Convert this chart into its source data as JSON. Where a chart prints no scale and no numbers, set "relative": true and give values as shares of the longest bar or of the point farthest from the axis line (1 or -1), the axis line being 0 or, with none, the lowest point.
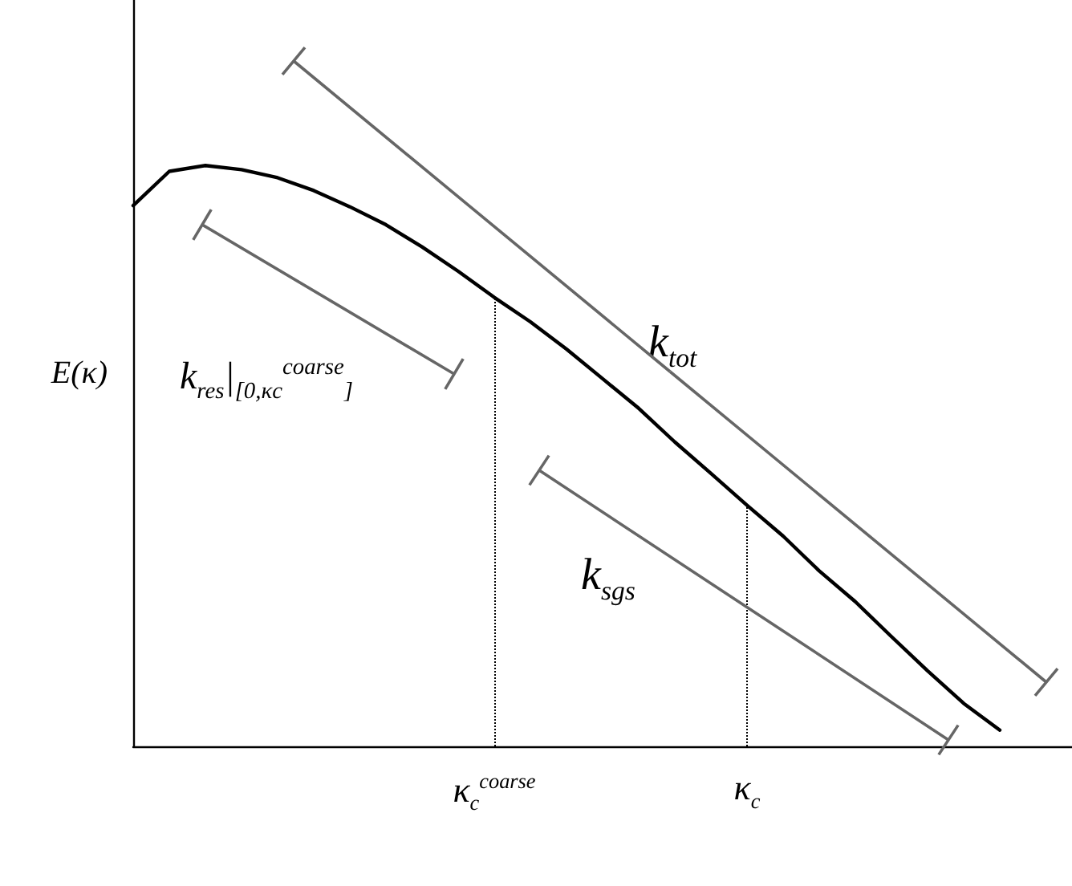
{
  "chart_data": {
    "type": "line",
    "relative": true,
    "ylabel": "E(κ)",
    "categories": [
      null,
      null,
      null,
      null,
      null,
      null,
      null,
      null,
      null,
      null,
      "κ$_{c}$$^{coarse}$",
      null,
      null,
      null,
      null,
      null,
      null,
      "κ$_{c}$",
      null,
      null,
      null,
      null,
      null,
      null,
      null,
      null,
      null
    ],
    "values": [
      0.931,
      0.99,
      1,
      0.993,
      0.979,
      0.957,
      0.929,
      0.898,
      0.86,
      0.818,
      0.773,
      0.731,
      0.684,
      0.633,
      0.582,
      0.524,
      0.47,
      0.415,
      0.362,
      0.302,
      0.249,
      0.189,
      0.13,
      0.074,
      0.028,
      null,
      null
    ],
    "color": "#000000",
    "marker": "none",
    "line_style": "solid",
    "grid": false,
    "ref_lines": [
      {
        "axis": "x",
        "value": "κ$_{c}$$^{coarse}$",
        "line_style": "dotted",
        "color": "#000000"
      },
      {
        "axis": "x",
        "value": "κ$_{c}$",
        "line_style": "dotted",
        "color": "#000000"
      }
    ],
    "annotations": [
      "k$_{res}$|$_{[0,κ}$$_{c}$$^{coarse}$$_{]}$",
      "k$_{tot}$",
      "k$_{sgs}$"
    ]
  }
}
